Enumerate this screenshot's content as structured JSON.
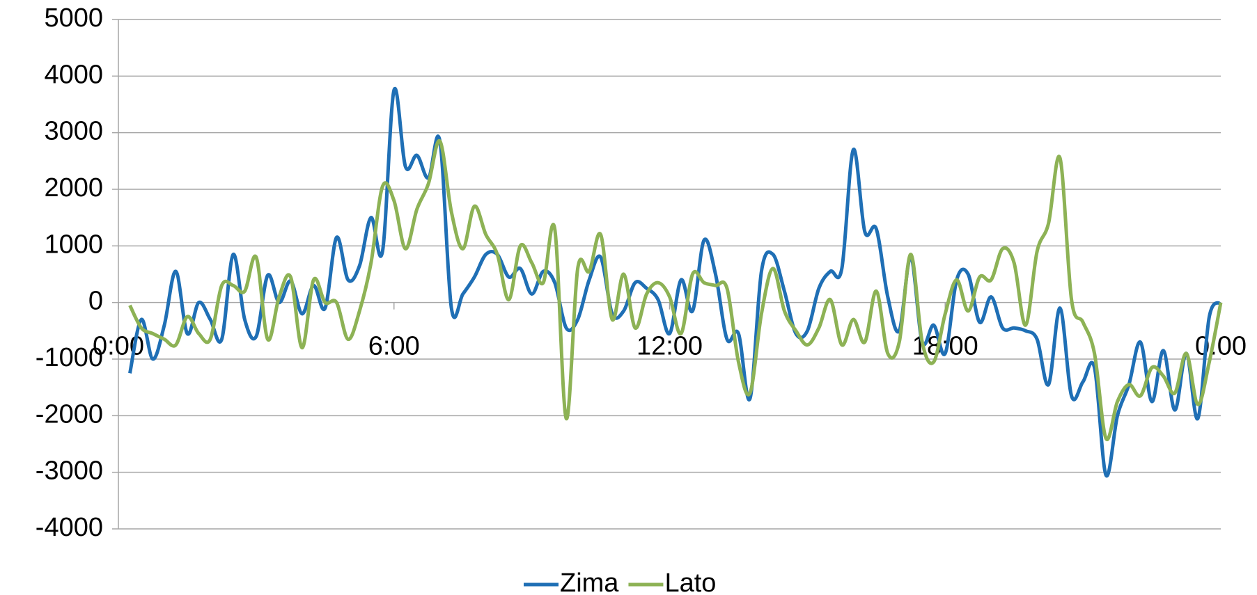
{
  "chart_data": {
    "type": "line",
    "x": [
      0.25,
      0.5,
      0.75,
      1,
      1.25,
      1.5,
      1.75,
      2,
      2.25,
      2.5,
      2.75,
      3,
      3.25,
      3.5,
      3.75,
      4,
      4.25,
      4.5,
      4.75,
      5,
      5.25,
      5.5,
      5.75,
      6,
      6.25,
      6.5,
      6.75,
      7,
      7.25,
      7.5,
      7.75,
      8,
      8.25,
      8.5,
      8.75,
      9,
      9.25,
      9.5,
      9.75,
      10,
      10.25,
      10.5,
      10.75,
      11,
      11.25,
      11.5,
      11.75,
      12,
      12.25,
      12.5,
      12.75,
      13,
      13.25,
      13.5,
      13.75,
      14,
      14.25,
      14.5,
      14.75,
      15,
      15.25,
      15.5,
      15.75,
      16,
      16.25,
      16.5,
      16.75,
      17,
      17.25,
      17.5,
      17.75,
      18,
      18.25,
      18.5,
      18.75,
      19,
      19.25,
      19.5,
      19.75,
      20,
      20.25,
      20.5,
      20.75,
      21,
      21.25,
      21.5,
      21.75,
      22,
      22.25,
      22.5,
      22.75,
      23,
      23.25,
      23.5,
      23.75,
      24
    ],
    "series": [
      {
        "name": "Zima",
        "color": "#1f6fb5",
        "values": [
          -1250,
          -300,
          -1000,
          -400,
          550,
          -550,
          0,
          -300,
          -650,
          850,
          -300,
          -600,
          480,
          0,
          380,
          -200,
          300,
          -100,
          1150,
          400,
          650,
          1500,
          900,
          3750,
          2400,
          2600,
          2200,
          2850,
          -100,
          150,
          450,
          850,
          850,
          450,
          600,
          150,
          550,
          350,
          -450,
          -300,
          400,
          800,
          -200,
          -150,
          350,
          250,
          50,
          -550,
          400,
          -150,
          1100,
          500,
          -650,
          -550,
          -1700,
          550,
          850,
          200,
          -550,
          -500,
          250,
          550,
          600,
          2700,
          1250,
          1300,
          100,
          -500,
          800,
          -700,
          -400,
          -900,
          400,
          500,
          -350,
          100,
          -450,
          -450,
          -500,
          -650,
          -1450,
          -100,
          -1650,
          -1400,
          -1150,
          -3050,
          -2000,
          -1450,
          -700,
          -1750,
          -850,
          -1900,
          -900,
          -2050,
          -250,
          0
        ]
      },
      {
        "name": "Lato",
        "color": "#8db255",
        "values": [
          -50,
          -450,
          -550,
          -650,
          -750,
          -250,
          -550,
          -650,
          300,
          300,
          200,
          800,
          -650,
          100,
          450,
          -800,
          400,
          0,
          0,
          -650,
          -150,
          700,
          2050,
          1800,
          950,
          1650,
          2100,
          2850,
          1600,
          950,
          1700,
          1200,
          850,
          50,
          1000,
          700,
          350,
          1300,
          -2050,
          600,
          550,
          1200,
          -300,
          500,
          -450,
          150,
          350,
          100,
          -550,
          500,
          350,
          300,
          250,
          -1050,
          -1600,
          -200,
          600,
          -150,
          -500,
          -750,
          -450,
          50,
          -750,
          -300,
          -700,
          200,
          -900,
          -700,
          850,
          -700,
          -1050,
          -200,
          400,
          -150,
          450,
          400,
          950,
          700,
          -400,
          900,
          1400,
          2550,
          50,
          -350,
          -900,
          -2400,
          -1750,
          -1450,
          -1650,
          -1150,
          -1300,
          -1600,
          -900,
          -1800,
          -1050,
          0
        ]
      }
    ],
    "xlim": [
      0,
      24
    ],
    "xticks": [
      {
        "value": 0,
        "label": "0:00"
      },
      {
        "value": 6,
        "label": "6:00"
      },
      {
        "value": 12,
        "label": "12:00"
      },
      {
        "value": 18,
        "label": "18:00"
      },
      {
        "value": 24,
        "label": "0:00"
      }
    ],
    "ylim": [
      -4000,
      5000
    ],
    "yticks": [
      -4000,
      -3000,
      -2000,
      -1000,
      0,
      1000,
      2000,
      3000,
      4000,
      5000
    ],
    "grid": true,
    "legend": "bottom"
  }
}
